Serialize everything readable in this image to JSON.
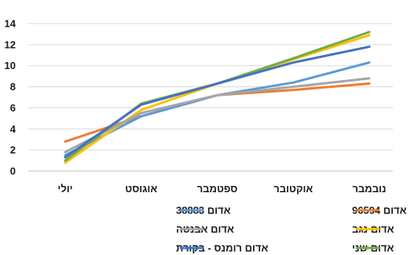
{
  "chart_data": {
    "type": "line",
    "title": "",
    "xlabel": "",
    "ylabel": "",
    "categories": [
      "יולי",
      "אוגוסט",
      "ספטמבר",
      "אוקטובר",
      "נובמבר"
    ],
    "x_axis_direction": "right-to-left",
    "ylim": [
      0,
      14
    ],
    "yticks": [
      0,
      2,
      4,
      6,
      8,
      10,
      12,
      14
    ],
    "grid": true,
    "legend_position": "bottom",
    "series": [
      {
        "name": "אדום 96594",
        "color": "#ED7D31",
        "values": [
          2.8,
          5.2,
          7.2,
          7.7,
          8.3
        ]
      },
      {
        "name": "אדום 38883",
        "color": "#5B9BD5",
        "values": [
          1.5,
          5.2,
          7.2,
          8.4,
          10.3
        ]
      },
      {
        "name": "אדום נגב",
        "color": "#FFC000",
        "values": [
          0.8,
          5.8,
          8.3,
          10.6,
          12.9
        ]
      },
      {
        "name": "אדום אבנטה",
        "color": "#A5A5A5",
        "values": [
          1.8,
          5.5,
          7.2,
          8.0,
          8.8
        ]
      },
      {
        "name": "אדום שני",
        "color": "#70AD47",
        "values": [
          1.0,
          6.4,
          8.3,
          10.7,
          13.2
        ]
      },
      {
        "name": "אדום רומנס - בקורת",
        "color": "#4472C4",
        "values": [
          1.3,
          6.3,
          8.3,
          10.3,
          11.8
        ]
      }
    ]
  }
}
